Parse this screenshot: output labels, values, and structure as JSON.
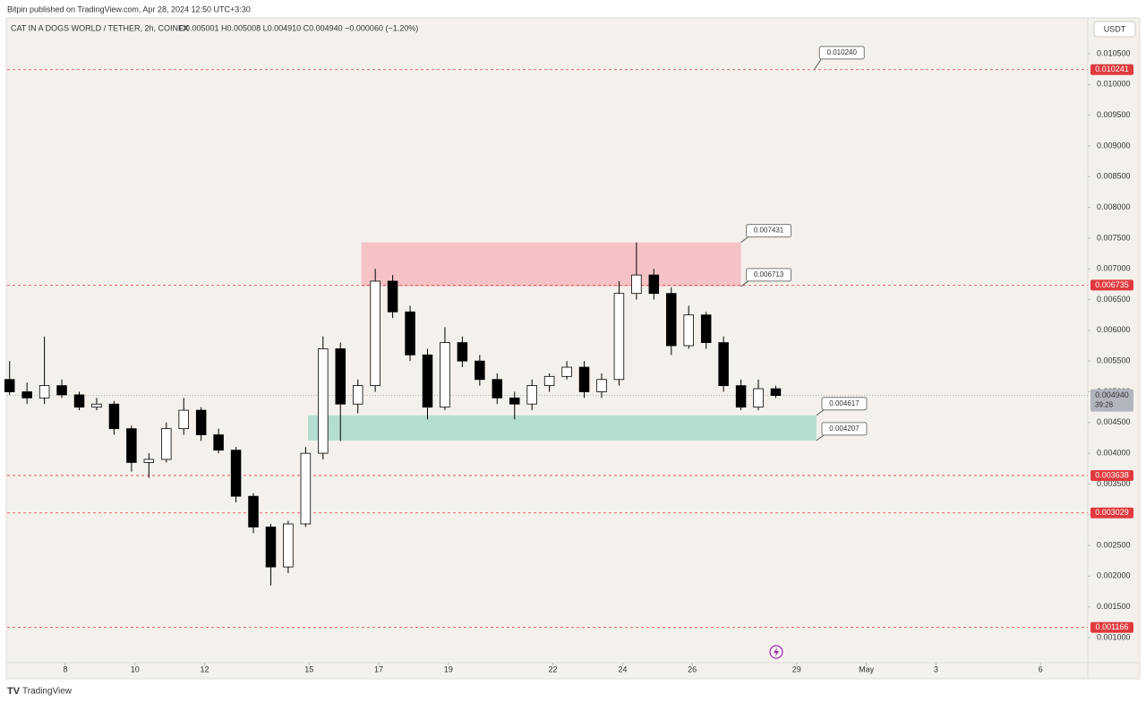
{
  "header": {
    "publisher": "Bitpin published on TradingView.com, Apr 28, 2024 12:50 UTC+3:30",
    "brand": "TradingView"
  },
  "chart_data": {
    "type": "candlestick",
    "title": "CAT IN A DOGS WORLD / TETHER, 2h, COINEX",
    "ohlc_text": "O0.005001 H0.005008 L0.004910 C0.004940 −0.000060 (−1.20%)",
    "currency": "USDT",
    "x": [
      6.4,
      6.9,
      7.4,
      7.9,
      8.4,
      8.9,
      9.4,
      9.9,
      10.4,
      10.9,
      11.4,
      11.9,
      12.4,
      12.9,
      13.4,
      13.9,
      14.4,
      14.9,
      15.4,
      15.9,
      16.4,
      16.9,
      17.4,
      17.9,
      18.4,
      18.9,
      19.4,
      19.9,
      20.4,
      20.9,
      21.4,
      21.9,
      22.4,
      22.9,
      23.4,
      23.9,
      24.4,
      24.9,
      25.4,
      25.9,
      26.4,
      26.9,
      27.4,
      27.9,
      28.4
    ],
    "open": [
      0.0052,
      0.005,
      0.0049,
      0.0051,
      0.00495,
      0.00475,
      0.0048,
      0.0044,
      0.00385,
      0.0039,
      0.0044,
      0.0047,
      0.0043,
      0.00405,
      0.0033,
      0.0028,
      0.00215,
      0.00285,
      0.004,
      0.0057,
      0.0048,
      0.0051,
      0.0068,
      0.0063,
      0.0056,
      0.00475,
      0.0058,
      0.0055,
      0.0052,
      0.0049,
      0.0048,
      0.0051,
      0.00525,
      0.0054,
      0.005,
      0.0052,
      0.0066,
      0.0069,
      0.0066,
      0.00575,
      0.00625,
      0.0058,
      0.0051,
      0.00475,
      0.00505
    ],
    "high": [
      0.0055,
      0.00515,
      0.0059,
      0.0052,
      0.005,
      0.0049,
      0.00485,
      0.00445,
      0.004,
      0.0045,
      0.0049,
      0.00475,
      0.0044,
      0.0041,
      0.00335,
      0.00285,
      0.0029,
      0.0041,
      0.0059,
      0.0058,
      0.0052,
      0.007,
      0.0069,
      0.0064,
      0.0057,
      0.00605,
      0.0059,
      0.0056,
      0.0053,
      0.005,
      0.0052,
      0.0053,
      0.0055,
      0.0055,
      0.0053,
      0.0068,
      0.00743,
      0.007,
      0.0067,
      0.0064,
      0.0063,
      0.0059,
      0.0052,
      0.0052,
      0.0051
    ],
    "low": [
      0.00495,
      0.0048,
      0.0048,
      0.0049,
      0.0047,
      0.0047,
      0.0043,
      0.0037,
      0.0036,
      0.00385,
      0.0043,
      0.0042,
      0.004,
      0.0032,
      0.0027,
      0.00185,
      0.00205,
      0.0028,
      0.0039,
      0.0042,
      0.00465,
      0.005,
      0.0062,
      0.0055,
      0.00455,
      0.0047,
      0.0054,
      0.0051,
      0.0048,
      0.00455,
      0.0047,
      0.005,
      0.0052,
      0.0049,
      0.0049,
      0.0051,
      0.0065,
      0.0065,
      0.0056,
      0.0057,
      0.0057,
      0.005,
      0.0047,
      0.0047,
      0.0049
    ],
    "close": [
      0.005,
      0.0049,
      0.0051,
      0.00495,
      0.00475,
      0.0048,
      0.0044,
      0.00385,
      0.0039,
      0.0044,
      0.0047,
      0.0043,
      0.00405,
      0.0033,
      0.0028,
      0.00215,
      0.00285,
      0.004,
      0.0057,
      0.0048,
      0.0051,
      0.0068,
      0.0063,
      0.0056,
      0.00475,
      0.0058,
      0.0055,
      0.0052,
      0.0049,
      0.0048,
      0.0051,
      0.00525,
      0.0054,
      0.005,
      0.0052,
      0.0066,
      0.0069,
      0.0066,
      0.00575,
      0.00625,
      0.0058,
      0.0051,
      0.00475,
      0.00505,
      0.00494
    ],
    "xlim": [
      6.33,
      37.36
    ],
    "xticks": [
      8,
      10,
      12,
      15,
      17,
      19,
      22,
      24,
      26,
      29,
      {
        "value": 31,
        "label": "May"
      },
      {
        "value": 33,
        "label": "3"
      },
      {
        "value": 36,
        "label": "6"
      }
    ],
    "ylim": [
      0.000592,
      0.011083
    ],
    "yticks": [
      {
        "value": 0.001,
        "label": "0.001000"
      },
      {
        "value": 0.0015,
        "label": "0.001500"
      },
      {
        "value": 0.002,
        "label": "0.002000"
      },
      {
        "value": 0.0025,
        "label": "0.002500"
      },
      {
        "value": 0.003,
        "label": "0.003000"
      },
      {
        "value": 0.0035,
        "label": "0.003500"
      },
      {
        "value": 0.004,
        "label": "0.004000"
      },
      {
        "value": 0.0045,
        "label": "0.004500"
      },
      {
        "value": 0.005,
        "label": "0.005000"
      },
      {
        "value": 0.0055,
        "label": "0.005500"
      },
      {
        "value": 0.006,
        "label": "0.006000"
      },
      {
        "value": 0.0065,
        "label": "0.006500"
      },
      {
        "value": 0.007,
        "label": "0.007000"
      },
      {
        "value": 0.0075,
        "label": "0.007500"
      },
      {
        "value": 0.008,
        "label": "0.008000"
      },
      {
        "value": 0.0085,
        "label": "0.008500"
      },
      {
        "value": 0.009,
        "label": "0.009000"
      },
      {
        "value": 0.0095,
        "label": "0.009500"
      },
      {
        "value": 0.01,
        "label": "0.010000"
      },
      {
        "value": 0.0105,
        "label": "0.010500"
      }
    ],
    "levels": [
      0.010241,
      0.006735,
      0.003638,
      0.003029,
      0.001166
    ],
    "level_color": "#e03a3e",
    "zones": [
      {
        "x": [
          16.5,
          27.4
        ],
        "y": [
          0.006713,
          0.007431
        ],
        "color": "#f5c3c6"
      },
      {
        "x": [
          14.97,
          29.57
        ],
        "y": [
          0.004207,
          0.004617
        ],
        "color": "#b5ddd2"
      }
    ],
    "note": {
      "x": 29.5,
      "value": 0.01024,
      "label": "0.010240"
    },
    "last": {
      "value": 0.00494,
      "label": "0.004940"
    },
    "countdown": "39:28",
    "up_color": "#ffffff",
    "down_color": "#000000",
    "grid": false
  }
}
